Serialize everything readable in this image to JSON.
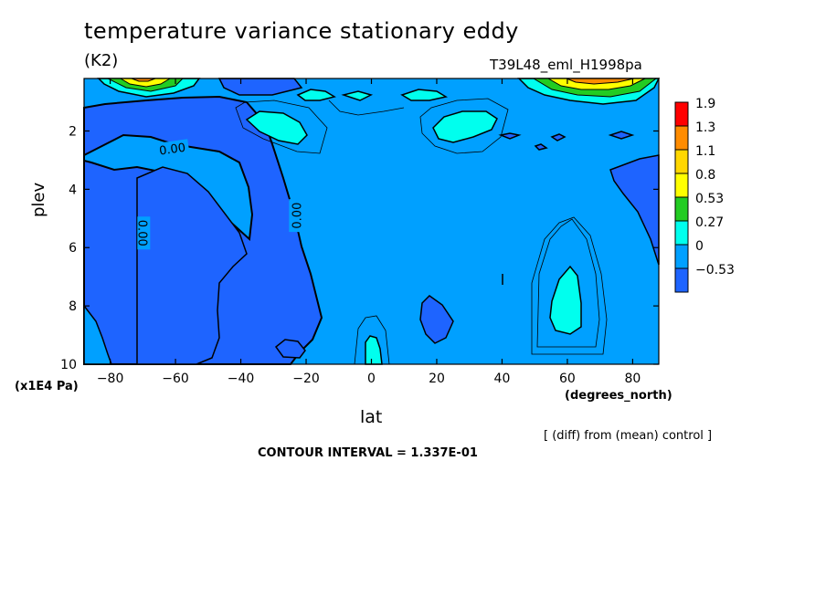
{
  "chart_data": {
    "type": "heatmap",
    "title": "temperature variance stationary eddy",
    "units": "(K2)",
    "run": "T39L48_eml_H1998pa",
    "xlabel": "lat",
    "ylabel": "plev",
    "x_unit": "(degrees_north)",
    "y_unit": "(x1E4 Pa)",
    "xlim": [
      -88,
      88
    ],
    "ylim": [
      10,
      0.2
    ],
    "x_ticks": [
      -80,
      -60,
      -40,
      -20,
      0,
      20,
      40,
      60,
      80
    ],
    "x_tick_labels": [
      "−80",
      "−60",
      "−40",
      "−20",
      "0",
      "20",
      "40",
      "60",
      "80"
    ],
    "y_ticks": [
      2,
      4,
      6,
      8,
      10
    ],
    "y_tick_labels": [
      "2",
      "4",
      "6",
      "8",
      "10"
    ],
    "contour_labels": [
      {
        "text": "0.00",
        "lat": -61,
        "plev": 2.6,
        "rotate": -8
      },
      {
        "text": "0.00",
        "lat": -70,
        "plev": 5.5,
        "rotate": 90
      },
      {
        "text": "0.00",
        "lat": -23,
        "plev": 4.9,
        "rotate": -90
      }
    ],
    "colorbar": {
      "labels": [
        "1.9",
        "1.3",
        "1.1",
        "0.8",
        "0.53",
        "0.27",
        "0",
        "−0.53"
      ],
      "colors": [
        "#ff0000",
        "#ff8c00",
        "#ffd700",
        "#ffff00",
        "#22cc22",
        "#00ffee",
        "#00a0ff",
        "#1e64ff"
      ]
    },
    "footnote": "[ (diff) from (mean) control ]",
    "contour_interval": "CONTOUR INTERVAL = 1.337E-01"
  },
  "colors": {
    "level_neg": "#1e64ff",
    "level_zero": "#00a0ff",
    "level_027": "#00ffee",
    "level_053": "#22cc22",
    "level_08": "#ffff00",
    "line": "#000000"
  }
}
